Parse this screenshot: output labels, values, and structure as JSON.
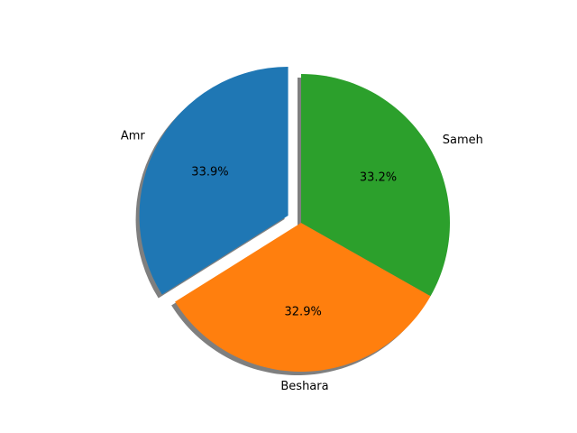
{
  "chart_data": {
    "type": "pie",
    "title": "",
    "slices": [
      {
        "label": "Amr",
        "percent": 33.9,
        "percent_label": "33.9%",
        "color": "#1f77b4",
        "exploded": true
      },
      {
        "label": "Beshara",
        "percent": 32.9,
        "percent_label": "32.9%",
        "color": "#ff7f0e",
        "exploded": false
      },
      {
        "label": "Sameh",
        "percent": 33.2,
        "percent_label": "33.2%",
        "color": "#2ca02c",
        "exploded": false
      }
    ],
    "start_angle_deg": 90,
    "direction": "counterclockwise",
    "shadow": true,
    "legend": "none"
  }
}
